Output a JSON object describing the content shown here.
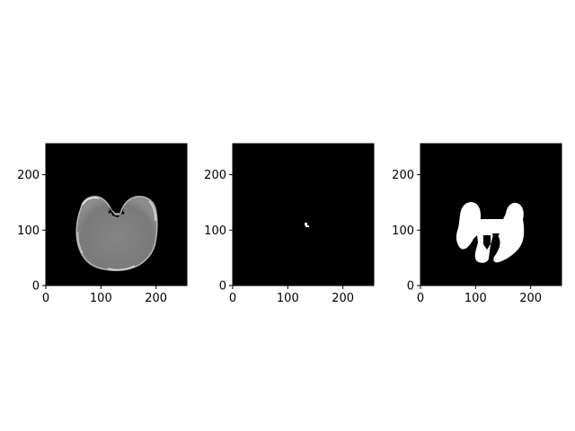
{
  "panels": [
    {
      "id": "ct-slice",
      "content": "grayscale brain slice",
      "xlim": [
        0,
        256
      ],
      "ylim": [
        0,
        256
      ],
      "x_ticks": [
        {
          "value": 0,
          "label": "0"
        },
        {
          "value": 100,
          "label": "100"
        },
        {
          "value": 200,
          "label": "200"
        }
      ],
      "y_ticks": [
        {
          "value": 0,
          "label": "0"
        },
        {
          "value": 100,
          "label": "100"
        },
        {
          "value": 200,
          "label": "200"
        }
      ]
    },
    {
      "id": "small-mask",
      "content": "binary mask with single small white spot",
      "xlim": [
        0,
        256
      ],
      "ylim": [
        0,
        256
      ],
      "x_ticks": [
        {
          "value": 0,
          "label": "0"
        },
        {
          "value": 100,
          "label": "100"
        },
        {
          "value": 200,
          "label": "200"
        }
      ],
      "y_ticks": [
        {
          "value": 0,
          "label": "0"
        },
        {
          "value": 100,
          "label": "100"
        },
        {
          "value": 200,
          "label": "200"
        }
      ]
    },
    {
      "id": "region-mask",
      "content": "binary mask with large white region",
      "xlim": [
        0,
        256
      ],
      "ylim": [
        0,
        256
      ],
      "x_ticks": [
        {
          "value": 0,
          "label": "0"
        },
        {
          "value": 100,
          "label": "100"
        },
        {
          "value": 200,
          "label": "200"
        }
      ],
      "y_ticks": [
        {
          "value": 0,
          "label": "0"
        },
        {
          "value": 100,
          "label": "100"
        },
        {
          "value": 200,
          "label": "200"
        }
      ]
    }
  ],
  "colors": {
    "background": "#000000",
    "mask": "#ffffff",
    "tissue": "#7f7f7f",
    "rim": "#bdbdbd"
  }
}
